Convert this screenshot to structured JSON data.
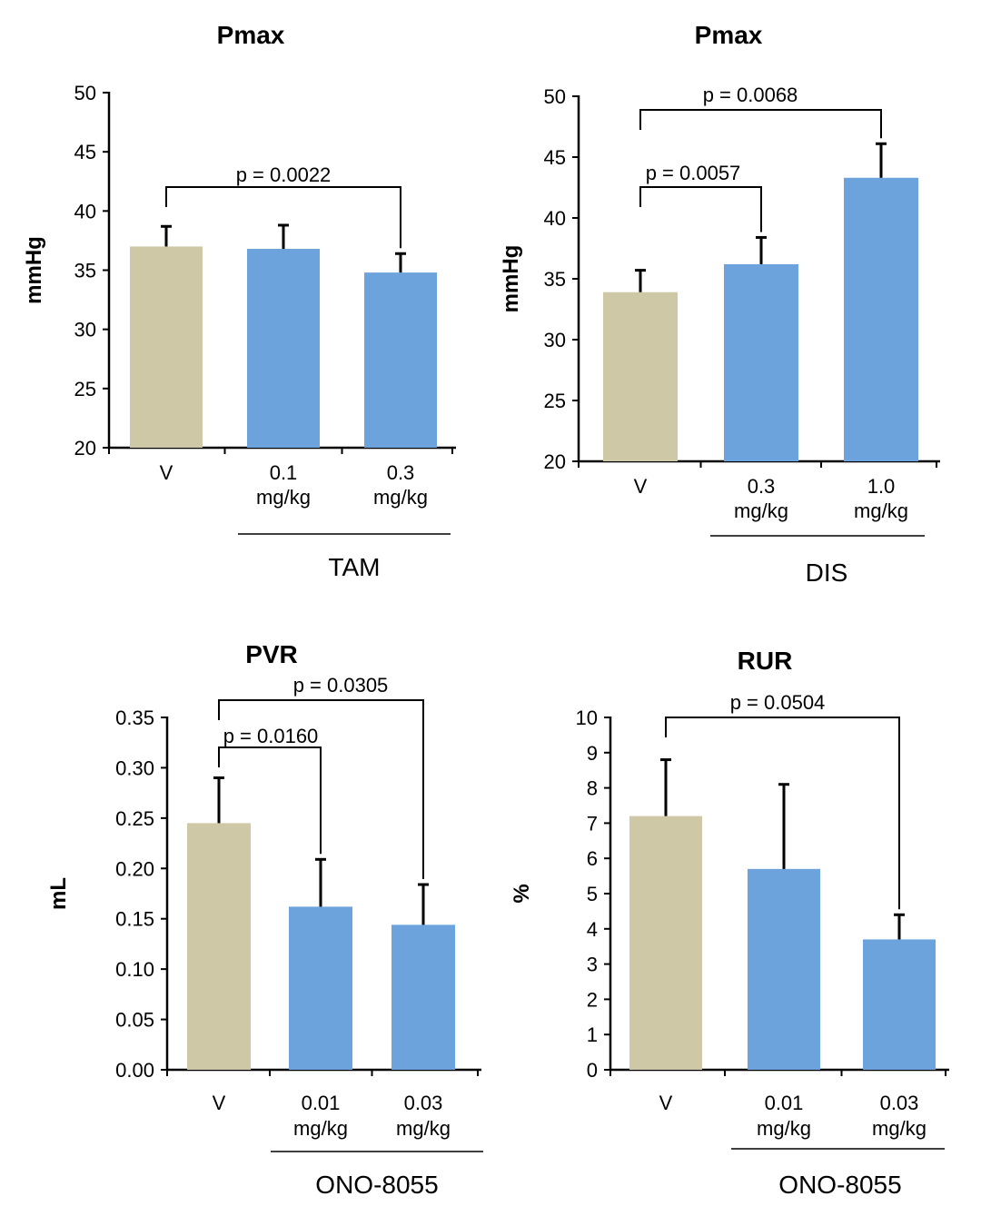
{
  "colors": {
    "vehicle": "#cfc8a6",
    "treatment": "#6ca3dc",
    "axis": "#000000"
  },
  "chart_data": [
    {
      "type": "bar",
      "title": "Pmax",
      "ylabel": "mmHg",
      "ylim": [
        20,
        50
      ],
      "yticks": [
        "20",
        "25",
        "30",
        "35",
        "40",
        "45",
        "50"
      ],
      "categories": [
        [
          "V"
        ],
        [
          "0.1",
          "mg/kg"
        ],
        [
          "0.3",
          "mg/kg"
        ]
      ],
      "values": [
        37.0,
        36.8,
        34.8
      ],
      "errors": [
        1.7,
        2.0,
        1.6
      ],
      "group_label": "TAM",
      "comparisons": [
        {
          "from": 0,
          "to": 2,
          "label": "p = 0.0022"
        }
      ]
    },
    {
      "type": "bar",
      "title": "Pmax",
      "ylabel": "mmHg",
      "ylim": [
        20,
        50
      ],
      "yticks": [
        "20",
        "25",
        "30",
        "35",
        "40",
        "45",
        "50"
      ],
      "categories": [
        [
          "V"
        ],
        [
          "0.3",
          "mg/kg"
        ],
        [
          "1.0",
          "mg/kg"
        ]
      ],
      "values": [
        33.9,
        36.2,
        43.3
      ],
      "errors": [
        1.8,
        2.2,
        2.8
      ],
      "group_label": "DIS",
      "comparisons": [
        {
          "from": 0,
          "to": 1,
          "label": "p = 0.0057"
        },
        {
          "from": 0,
          "to": 2,
          "label": "p = 0.0068"
        }
      ]
    },
    {
      "type": "bar",
      "title": "PVR",
      "ylabel": "mL",
      "ylim": [
        0,
        0.35
      ],
      "yticks": [
        "0.00",
        "0.05",
        "0.10",
        "0.15",
        "0.20",
        "0.25",
        "0.30",
        "0.35"
      ],
      "categories": [
        [
          "V"
        ],
        [
          "0.01",
          "mg/kg"
        ],
        [
          "0.03",
          "mg/kg"
        ]
      ],
      "values": [
        0.245,
        0.162,
        0.144
      ],
      "errors": [
        0.045,
        0.047,
        0.04
      ],
      "group_label": "ONO-8055",
      "comparisons": [
        {
          "from": 0,
          "to": 1,
          "label": "p = 0.0160"
        },
        {
          "from": 0,
          "to": 2,
          "label": "p = 0.0305"
        }
      ]
    },
    {
      "type": "bar",
      "title": "RUR",
      "ylabel": "%",
      "ylim": [
        0,
        10
      ],
      "yticks": [
        "0",
        "1",
        "2",
        "3",
        "4",
        "5",
        "6",
        "7",
        "8",
        "9",
        "10"
      ],
      "categories": [
        [
          "V"
        ],
        [
          "0.01",
          "mg/kg"
        ],
        [
          "0.03",
          "mg/kg"
        ]
      ],
      "values": [
        7.2,
        5.7,
        3.7
      ],
      "errors": [
        1.6,
        2.4,
        0.7
      ],
      "group_label": "ONO-8055",
      "comparisons": [
        {
          "from": 0,
          "to": 2,
          "label": "p = 0.0504"
        }
      ]
    }
  ]
}
